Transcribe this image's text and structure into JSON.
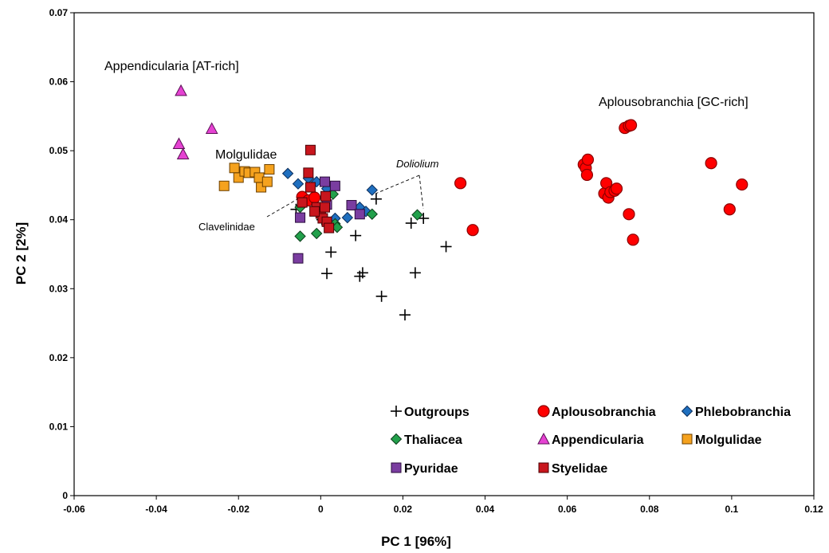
{
  "chart_data": {
    "type": "scatter",
    "xlabel": "PC 1 [96%]",
    "ylabel": "PC 2 [2%]",
    "xlim": [
      -0.06,
      0.12
    ],
    "ylim": [
      0,
      0.07
    ],
    "xticks": [
      "-0.06",
      "-0.04",
      "-0.02",
      "0",
      "0.02",
      "0.04",
      "0.06",
      "0.08",
      "0.1",
      "0.12"
    ],
    "yticks": [
      "0",
      "0.01",
      "0.02",
      "0.03",
      "0.04",
      "0.05",
      "0.06",
      "0.07"
    ],
    "grid": false,
    "legend_position": "bottom-right",
    "annotations": [
      {
        "text": "Appendicularia [AT-rich]",
        "style": "normal"
      },
      {
        "text": "Aplousobranchia [GC-rich]",
        "style": "normal"
      },
      {
        "text": "Molgulidae",
        "style": "normal"
      },
      {
        "text": "Doliolium",
        "style": "italic"
      },
      {
        "text": "Clavelinidae",
        "style": "small"
      }
    ],
    "series": [
      {
        "name": "Outgroups",
        "marker": "plus",
        "color": "#000000",
        "edge": "#000000",
        "points": [
          [
            -0.006,
            0.0415
          ],
          [
            0.0015,
            0.0322
          ],
          [
            0.0025,
            0.0353
          ],
          [
            0.0085,
            0.0377
          ],
          [
            0.0095,
            0.0318
          ],
          [
            0.0102,
            0.0323
          ],
          [
            0.0135,
            0.043
          ],
          [
            0.0148,
            0.0289
          ],
          [
            0.0205,
            0.0262
          ],
          [
            0.022,
            0.0395
          ],
          [
            0.023,
            0.0323
          ],
          [
            0.025,
            0.0402
          ],
          [
            0.0305,
            0.0361
          ],
          [
            0.0003,
            0.04
          ]
        ]
      },
      {
        "name": "Aplousobranchia",
        "marker": "circle",
        "color": "#FF0000",
        "edge": "#8B0000",
        "points": [
          [
            -0.0045,
            0.0433
          ],
          [
            -0.003,
            0.0428
          ],
          [
            -0.0015,
            0.0432
          ],
          [
            0.034,
            0.0453
          ],
          [
            0.037,
            0.0385
          ],
          [
            0.064,
            0.048
          ],
          [
            0.0645,
            0.0475
          ],
          [
            0.0648,
            0.0465
          ],
          [
            0.065,
            0.0487
          ],
          [
            0.069,
            0.0438
          ],
          [
            0.0695,
            0.0453
          ],
          [
            0.07,
            0.0432
          ],
          [
            0.0705,
            0.044
          ],
          [
            0.0715,
            0.0442
          ],
          [
            0.072,
            0.0445
          ],
          [
            0.074,
            0.0533
          ],
          [
            0.075,
            0.0536
          ],
          [
            0.0755,
            0.0537
          ],
          [
            0.075,
            0.0408
          ],
          [
            0.076,
            0.0371
          ],
          [
            0.095,
            0.0482
          ],
          [
            0.0995,
            0.0415
          ],
          [
            0.1025,
            0.0451
          ]
        ]
      },
      {
        "name": "Phlebobranchia",
        "marker": "diamond",
        "color": "#1F6FBF",
        "edge": "#0B2D5A",
        "points": [
          [
            -0.008,
            0.0467
          ],
          [
            -0.0055,
            0.0452
          ],
          [
            -0.003,
            0.046
          ],
          [
            -0.001,
            0.0455
          ],
          [
            0.0015,
            0.0445
          ],
          [
            0.0035,
            0.0402
          ],
          [
            0.0065,
            0.0403
          ],
          [
            0.0095,
            0.0418
          ],
          [
            0.011,
            0.0412
          ],
          [
            0.0125,
            0.0443
          ]
        ]
      },
      {
        "name": "Thaliacea",
        "marker": "diamond",
        "color": "#22A04B",
        "edge": "#0B3D1A",
        "points": [
          [
            -0.005,
            0.0418
          ],
          [
            -0.005,
            0.0376
          ],
          [
            -0.001,
            0.038
          ],
          [
            0.003,
            0.0437
          ],
          [
            0.0035,
            0.0394
          ],
          [
            0.004,
            0.0389
          ],
          [
            0.0125,
            0.0408
          ],
          [
            0.0235,
            0.0407
          ]
        ]
      },
      {
        "name": "Appendicularia",
        "marker": "triangle",
        "color": "#E542D2",
        "edge": "#5A0F55",
        "points": [
          [
            -0.034,
            0.0587
          ],
          [
            -0.0345,
            0.051
          ],
          [
            -0.0335,
            0.0495
          ],
          [
            -0.0265,
            0.0532
          ]
        ]
      },
      {
        "name": "Molgulidae",
        "marker": "square",
        "color": "#F5A21E",
        "edge": "#6B3F00",
        "points": [
          [
            -0.0235,
            0.0449
          ],
          [
            -0.021,
            0.0475
          ],
          [
            -0.02,
            0.0461
          ],
          [
            -0.0185,
            0.047
          ],
          [
            -0.0175,
            0.0468
          ],
          [
            -0.016,
            0.0469
          ],
          [
            -0.015,
            0.0461
          ],
          [
            -0.0145,
            0.0447
          ],
          [
            -0.013,
            0.0455
          ],
          [
            -0.0125,
            0.0473
          ]
        ]
      },
      {
        "name": "Pyuridae",
        "marker": "square",
        "color": "#7A3DA0",
        "edge": "#2B0D3D",
        "points": [
          [
            -0.0055,
            0.0344
          ],
          [
            -0.005,
            0.0403
          ],
          [
            -0.001,
            0.0415
          ],
          [
            0.001,
            0.0455
          ],
          [
            0.0015,
            0.0422
          ],
          [
            0.0035,
            0.0449
          ],
          [
            0.0075,
            0.0421
          ],
          [
            0.0095,
            0.0408
          ]
        ]
      },
      {
        "name": "Styelidae",
        "marker": "square",
        "color": "#C8161D",
        "edge": "#4A0004",
        "points": [
          [
            -0.0025,
            0.0501
          ],
          [
            -0.003,
            0.0468
          ],
          [
            -0.0025,
            0.0447
          ],
          [
            -0.0045,
            0.0425
          ],
          [
            -0.001,
            0.0418
          ],
          [
            0.0,
            0.0409
          ],
          [
            0.0005,
            0.0402
          ],
          [
            0.001,
            0.0418
          ],
          [
            0.0012,
            0.0434
          ],
          [
            0.0015,
            0.0397
          ],
          [
            0.002,
            0.0388
          ],
          [
            -0.0015,
            0.0412
          ]
        ]
      }
    ]
  }
}
